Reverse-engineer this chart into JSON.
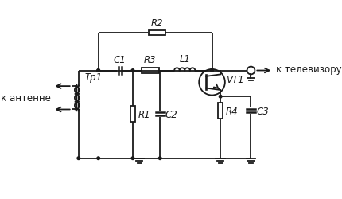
{
  "background_color": "#ffffff",
  "line_color": "#1a1a1a",
  "annotations": {
    "antenna": "к антенне",
    "tv": "к телевизору"
  },
  "labels": {
    "R1": "R1",
    "R2": "R2",
    "R3": "R3",
    "R4": "R4",
    "C1": "C1",
    "C2": "C2",
    "C3": "C3",
    "L1": "L1",
    "VT1": "VT1",
    "Tp1": "Тр1"
  }
}
